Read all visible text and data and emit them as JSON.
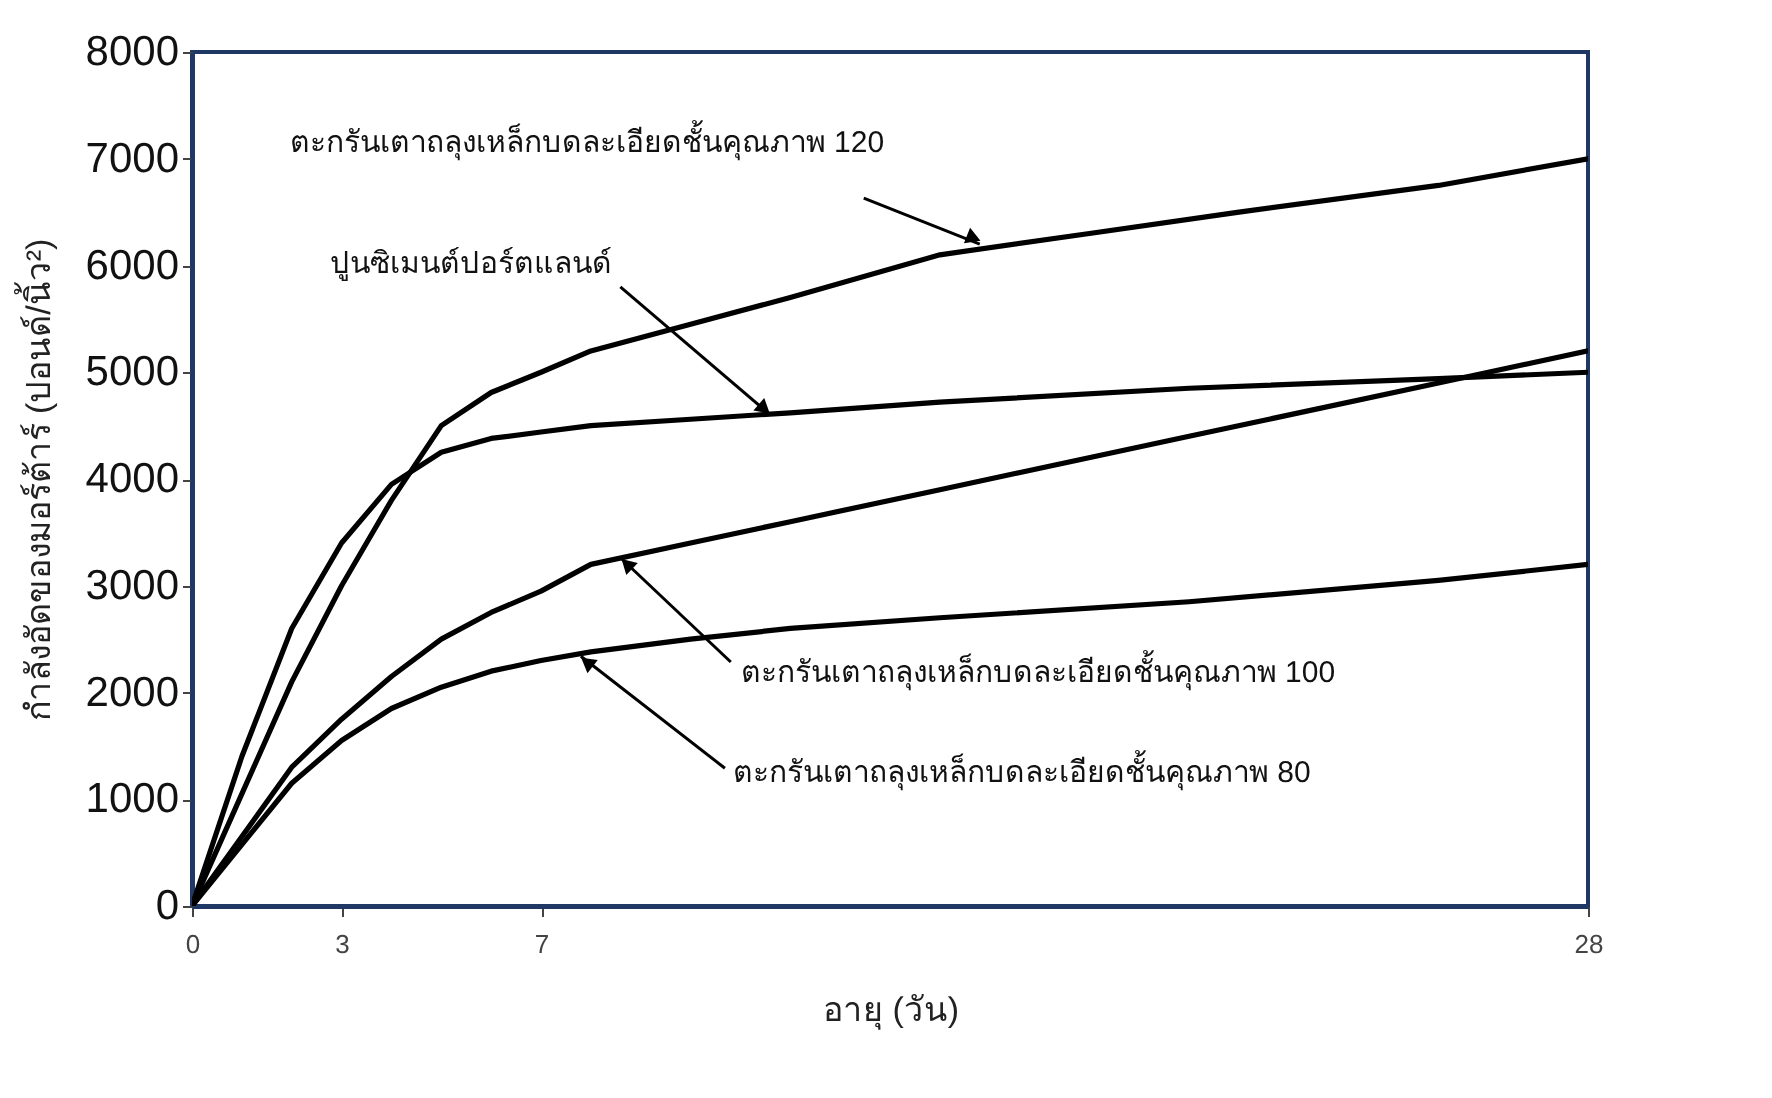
{
  "chart_data": {
    "type": "line",
    "xlabel": "อายุ (วัน)",
    "ylabel": "กำลังอัดของมอร์ต้าร์ (ปอนด์/นิ้ว²)",
    "xlim": [
      0,
      28
    ],
    "xticks": [
      0,
      3,
      7,
      28
    ],
    "ylim": [
      0,
      8000
    ],
    "yticks": [
      0,
      1000,
      2000,
      3000,
      4000,
      5000,
      6000,
      7000,
      8000
    ],
    "grid": false,
    "marker": "none",
    "line_style": "solid",
    "series": [
      {
        "color": "#000000",
        "x": [
          0,
          1,
          2,
          3,
          4,
          5,
          6,
          7,
          8,
          10,
          12,
          15,
          18,
          21,
          25,
          28
        ],
        "values": [
          0,
          1050,
          2100,
          3000,
          3800,
          4500,
          4810,
          5000,
          5200,
          5450,
          5700,
          6100,
          6300,
          6500,
          6750,
          7000
        ]
      },
      {
        "color": "#000000",
        "x": [
          0,
          1,
          2,
          3,
          4,
          5,
          6,
          7,
          8,
          10,
          12,
          15,
          20,
          25,
          28
        ],
        "values": [
          0,
          1400,
          2600,
          3400,
          3950,
          4250,
          4380,
          4440,
          4500,
          4560,
          4620,
          4720,
          4850,
          4940,
          5000
        ]
      },
      {
        "color": "#000000",
        "x": [
          0,
          2,
          3,
          4,
          5,
          6,
          7,
          8,
          10,
          12,
          15,
          20,
          25,
          28
        ],
        "values": [
          0,
          1300,
          1750,
          2150,
          2500,
          2750,
          2950,
          3200,
          3400,
          3600,
          3900,
          4400,
          4900,
          5200
        ]
      },
      {
        "color": "#000000",
        "x": [
          0,
          2,
          3,
          4,
          5,
          6,
          7,
          8,
          10,
          12,
          15,
          20,
          25,
          28
        ],
        "values": [
          0,
          1150,
          1550,
          1850,
          2050,
          2200,
          2300,
          2380,
          2500,
          2600,
          2700,
          2850,
          3050,
          3200
        ]
      }
    ],
    "annotations": [
      {
        "text": "ตะกรันเตาถลุงเหล็กบดละเอียดชั้นคุณภาพ 120",
        "x": 15.8,
        "y": 6200
      },
      {
        "text": "ปูนซิเมนต์ปอร์ตแลนด์",
        "x": 11.6,
        "y": 4600
      },
      {
        "text": "ตะกรันเตาถลุงเหล็กบดละเอียดชั้นคุณภาพ 100",
        "x": 8.6,
        "y": 3260
      },
      {
        "text": "ตะกรันเตาถลุงเหล็กบดละเอียดชั้นคุณภาพ 80",
        "x": 7.8,
        "y": 2340
      }
    ]
  }
}
